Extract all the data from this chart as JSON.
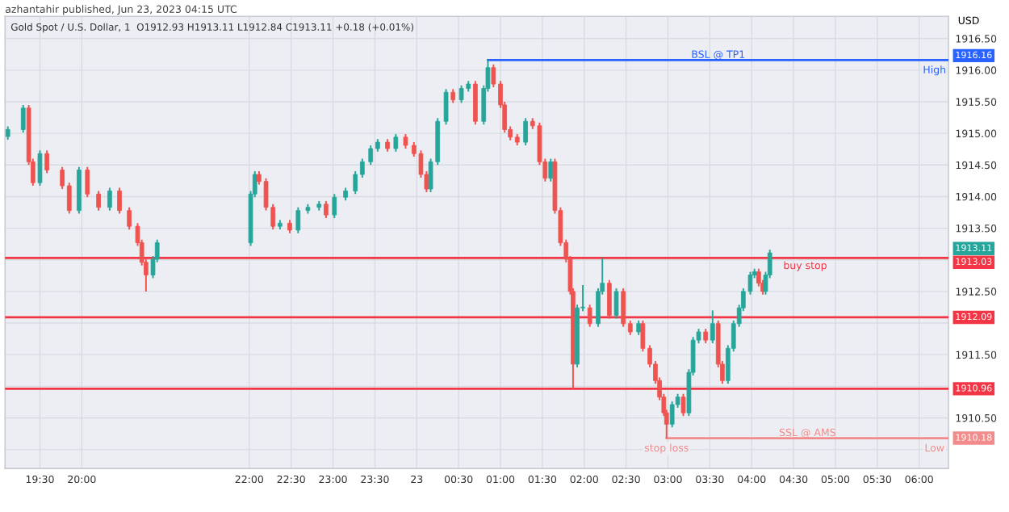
{
  "chart_data": {
    "type": "candlestick",
    "title": "Gold Spot / U.S. Dollar, 1",
    "subtitle": "O1912.93 H1913.11 L1912.84 C1913.11 +0.18 (+0.01%)",
    "ylabel": "USD",
    "grid": true,
    "xlim": [
      "2023-06-22T19:05",
      "2023-06-23T06:21"
    ],
    "xticks": [
      {
        "value": "2023-06-22T19:30",
        "label": "19:30"
      },
      {
        "value": "2023-06-22T20:00",
        "label": "20:00"
      },
      {
        "value": "2023-06-22T22:00",
        "label": "22:00"
      },
      {
        "value": "2023-06-22T22:30",
        "label": "22:30"
      },
      {
        "value": "2023-06-22T23:00",
        "label": "23:00"
      },
      {
        "value": "2023-06-22T23:30",
        "label": "23:30"
      },
      {
        "value": "2023-06-23T00:00",
        "label": "23"
      },
      {
        "value": "2023-06-23T00:30",
        "label": "00:30"
      },
      {
        "value": "2023-06-23T01:00",
        "label": "01:00"
      },
      {
        "value": "2023-06-23T01:30",
        "label": "01:30"
      },
      {
        "value": "2023-06-23T02:00",
        "label": "02:00"
      },
      {
        "value": "2023-06-23T02:30",
        "label": "02:30"
      },
      {
        "value": "2023-06-23T03:00",
        "label": "03:00"
      },
      {
        "value": "2023-06-23T03:30",
        "label": "03:30"
      },
      {
        "value": "2023-06-23T04:00",
        "label": "04:00"
      },
      {
        "value": "2023-06-23T04:30",
        "label": "04:30"
      },
      {
        "value": "2023-06-23T05:00",
        "label": "05:00"
      },
      {
        "value": "2023-06-23T05:30",
        "label": "05:30"
      },
      {
        "value": "2023-06-23T06:00",
        "label": "06:00"
      }
    ],
    "ylim": [
      1909.7,
      1916.85
    ],
    "yticks": [
      {
        "value": 1910.0,
        "label": null
      },
      {
        "value": 1910.5,
        "label": "1910.50"
      },
      {
        "value": 1911.0,
        "label": null
      },
      {
        "value": 1911.5,
        "label": "1911.50"
      },
      {
        "value": 1912.0,
        "label": null
      },
      {
        "value": 1912.5,
        "label": "1912.50"
      },
      {
        "value": 1913.0,
        "label": null
      },
      {
        "value": 1913.5,
        "label": "1913.50"
      },
      {
        "value": 1914.0,
        "label": "1914.00"
      },
      {
        "value": 1914.5,
        "label": "1914.50"
      },
      {
        "value": 1915.0,
        "label": "1915.00"
      },
      {
        "value": 1915.5,
        "label": "1915.50"
      },
      {
        "value": 1916.0,
        "label": "1916.00"
      },
      {
        "value": 1916.5,
        "label": "1916.50"
      }
    ],
    "series": [
      {
        "x": [
          "2023-06-22T19:07",
          "2023-06-22T19:18",
          "2023-06-22T19:22",
          "2023-06-22T19:25",
          "2023-06-22T19:30",
          "2023-06-22T19:35",
          "2023-06-22T19:46",
          "2023-06-22T19:51",
          "2023-06-22T19:58",
          "2023-06-22T20:04",
          "2023-06-22T20:12",
          "2023-06-22T20:20",
          "2023-06-22T20:27",
          "2023-06-22T20:34",
          "2023-06-22T20:40",
          "2023-06-22T20:43",
          "2023-06-22T20:46",
          "2023-06-22T20:51",
          "2023-06-22T20:54",
          "2023-06-22T22:01",
          "2023-06-22T22:04",
          "2023-06-22T22:07",
          "2023-06-22T22:12",
          "2023-06-22T22:17",
          "2023-06-22T22:22",
          "2023-06-22T22:29",
          "2023-06-22T22:35",
          "2023-06-22T22:42",
          "2023-06-22T22:50",
          "2023-06-22T22:55",
          "2023-06-22T23:01",
          "2023-06-22T23:09",
          "2023-06-22T23:16",
          "2023-06-22T23:21",
          "2023-06-22T23:27",
          "2023-06-22T23:32",
          "2023-06-22T23:39",
          "2023-06-22T23:45",
          "2023-06-22T23:52",
          "2023-06-22T23:58",
          "2023-06-23T00:03",
          "2023-06-23T00:07",
          "2023-06-23T00:10",
          "2023-06-23T00:15",
          "2023-06-23T00:21",
          "2023-06-23T00:26",
          "2023-06-23T00:32",
          "2023-06-23T00:37",
          "2023-06-23T00:42",
          "2023-06-23T00:48",
          "2023-06-23T00:51",
          "2023-06-23T00:55",
          "2023-06-23T01:00",
          "2023-06-23T01:03",
          "2023-06-23T01:07",
          "2023-06-23T01:12",
          "2023-06-23T01:18",
          "2023-06-23T01:23",
          "2023-06-23T01:28",
          "2023-06-23T01:32",
          "2023-06-23T01:36",
          "2023-06-23T01:39",
          "2023-06-23T01:43",
          "2023-06-23T01:47",
          "2023-06-23T01:50",
          "2023-06-23T01:52",
          "2023-06-23T01:55",
          "2023-06-23T01:59",
          "2023-06-23T02:04",
          "2023-06-23T02:10",
          "2023-06-23T02:13",
          "2023-06-23T02:18",
          "2023-06-23T02:23",
          "2023-06-23T02:28",
          "2023-06-23T02:33",
          "2023-06-23T02:39",
          "2023-06-23T02:42",
          "2023-06-23T02:47",
          "2023-06-23T02:51",
          "2023-06-23T02:54",
          "2023-06-23T02:57",
          "2023-06-23T02:59",
          "2023-06-23T03:03",
          "2023-06-23T03:07",
          "2023-06-23T03:11",
          "2023-06-23T03:15",
          "2023-06-23T03:18",
          "2023-06-23T03:22",
          "2023-06-23T03:27",
          "2023-06-23T03:32",
          "2023-06-23T03:36",
          "2023-06-23T03:39",
          "2023-06-23T03:43",
          "2023-06-23T03:47",
          "2023-06-23T03:51",
          "2023-06-23T03:54",
          "2023-06-23T03:59",
          "2023-06-23T04:02",
          "2023-06-23T04:05",
          "2023-06-23T04:08",
          "2023-06-23T04:10",
          "2023-06-23T04:13"
        ],
        "ohlc": [
          [
            1914.95,
            1915.11,
            1914.9,
            1915.06
          ],
          [
            1915.06,
            1915.45,
            1915.01,
            1915.4
          ],
          [
            1915.4,
            1915.45,
            1914.5,
            1914.55
          ],
          [
            1914.55,
            1914.6,
            1914.17,
            1914.22
          ],
          [
            1914.22,
            1914.73,
            1914.17,
            1914.68
          ],
          [
            1914.68,
            1914.73,
            1914.37,
            1914.42
          ],
          [
            1914.42,
            1914.47,
            1914.12,
            1914.17
          ],
          [
            1914.17,
            1914.22,
            1913.73,
            1913.78
          ],
          [
            1913.78,
            1914.47,
            1913.73,
            1914.42
          ],
          [
            1914.42,
            1914.47,
            1913.99,
            1914.04
          ],
          [
            1914.04,
            1914.09,
            1913.78,
            1913.83
          ],
          [
            1913.83,
            1914.14,
            1913.78,
            1914.09
          ],
          [
            1914.09,
            1914.14,
            1913.73,
            1913.78
          ],
          [
            1913.78,
            1913.83,
            1913.48,
            1913.53
          ],
          [
            1913.53,
            1913.58,
            1913.22,
            1913.27
          ],
          [
            1913.27,
            1913.32,
            1912.91,
            1912.96
          ],
          [
            1912.96,
            1913.01,
            1912.5,
            1912.76
          ],
          [
            1912.76,
            1913.06,
            1912.71,
            1913.01
          ],
          [
            1913.01,
            1913.32,
            1912.96,
            1913.27
          ],
          [
            1913.27,
            1914.09,
            1913.22,
            1914.04
          ],
          [
            1914.04,
            1914.4,
            1913.99,
            1914.35
          ],
          [
            1914.35,
            1914.4,
            1914.19,
            1914.24
          ],
          [
            1914.24,
            1914.29,
            1913.78,
            1913.83
          ],
          [
            1913.83,
            1913.88,
            1913.48,
            1913.53
          ],
          [
            1913.53,
            1913.63,
            1913.48,
            1913.58
          ],
          [
            1913.58,
            1913.63,
            1913.42,
            1913.47
          ],
          [
            1913.47,
            1913.83,
            1913.42,
            1913.78
          ],
          [
            1913.78,
            1913.88,
            1913.73,
            1913.83
          ],
          [
            1913.83,
            1913.93,
            1913.78,
            1913.88
          ],
          [
            1913.88,
            1913.93,
            1913.66,
            1913.71
          ],
          [
            1913.71,
            1914.04,
            1913.66,
            1913.99
          ],
          [
            1913.99,
            1914.14,
            1913.94,
            1914.09
          ],
          [
            1914.09,
            1914.4,
            1914.04,
            1914.35
          ],
          [
            1914.35,
            1914.6,
            1914.3,
            1914.55
          ],
          [
            1914.55,
            1914.81,
            1914.5,
            1914.76
          ],
          [
            1914.76,
            1914.91,
            1914.71,
            1914.86
          ],
          [
            1914.86,
            1914.91,
            1914.71,
            1914.76
          ],
          [
            1914.76,
            1914.99,
            1914.71,
            1914.94
          ],
          [
            1914.94,
            1914.99,
            1914.76,
            1914.81
          ],
          [
            1914.81,
            1914.86,
            1914.63,
            1914.68
          ],
          [
            1914.68,
            1914.73,
            1914.3,
            1914.35
          ],
          [
            1914.35,
            1914.4,
            1914.07,
            1914.12
          ],
          [
            1914.12,
            1914.6,
            1914.07,
            1914.55
          ],
          [
            1914.55,
            1915.24,
            1914.5,
            1915.19
          ],
          [
            1915.19,
            1915.7,
            1915.14,
            1915.65
          ],
          [
            1915.65,
            1915.7,
            1915.48,
            1915.53
          ],
          [
            1915.53,
            1915.76,
            1915.48,
            1915.71
          ],
          [
            1915.71,
            1915.83,
            1915.66,
            1915.78
          ],
          [
            1915.78,
            1915.83,
            1915.14,
            1915.19
          ],
          [
            1915.19,
            1915.76,
            1915.14,
            1915.71
          ],
          [
            1915.71,
            1916.16,
            1915.66,
            1916.04
          ],
          [
            1916.04,
            1916.09,
            1915.73,
            1915.78
          ],
          [
            1915.78,
            1915.83,
            1915.4,
            1915.45
          ],
          [
            1915.45,
            1915.5,
            1915.01,
            1915.06
          ],
          [
            1915.06,
            1915.11,
            1914.89,
            1914.94
          ],
          [
            1914.94,
            1914.99,
            1914.81,
            1914.86
          ],
          [
            1914.86,
            1915.24,
            1914.81,
            1915.19
          ],
          [
            1915.19,
            1915.24,
            1915.07,
            1915.12
          ],
          [
            1915.12,
            1915.17,
            1914.5,
            1914.55
          ],
          [
            1914.55,
            1914.6,
            1914.24,
            1914.29
          ],
          [
            1914.29,
            1914.6,
            1914.24,
            1914.55
          ],
          [
            1914.55,
            1914.6,
            1913.73,
            1913.78
          ],
          [
            1913.78,
            1913.83,
            1913.22,
            1913.27
          ],
          [
            1913.27,
            1913.32,
            1912.96,
            1913.01
          ],
          [
            1913.01,
            1913.06,
            1912.45,
            1912.5
          ],
          [
            1912.5,
            1912.55,
            1910.96,
            1911.35
          ],
          [
            1911.35,
            1912.29,
            1911.3,
            1912.24
          ],
          [
            1912.24,
            1912.6,
            1912.19,
            1912.24
          ],
          [
            1912.24,
            1912.29,
            1911.94,
            1911.99
          ],
          [
            1911.99,
            1912.55,
            1911.94,
            1912.5
          ],
          [
            1912.5,
            1913.03,
            1912.45,
            1912.63
          ],
          [
            1912.63,
            1912.68,
            1912.07,
            1912.12
          ],
          [
            1912.12,
            1912.55,
            1912.07,
            1912.5
          ],
          [
            1912.5,
            1912.55,
            1911.94,
            1911.99
          ],
          [
            1911.99,
            1912.04,
            1911.81,
            1911.86
          ],
          [
            1911.86,
            1912.04,
            1911.81,
            1911.99
          ],
          [
            1911.99,
            1912.04,
            1911.55,
            1911.6
          ],
          [
            1911.6,
            1911.65,
            1911.3,
            1911.35
          ],
          [
            1911.35,
            1911.4,
            1911.04,
            1911.09
          ],
          [
            1911.09,
            1911.14,
            1910.78,
            1910.83
          ],
          [
            1910.83,
            1910.88,
            1910.53,
            1910.58
          ],
          [
            1910.58,
            1910.63,
            1910.18,
            1910.4
          ],
          [
            1910.4,
            1910.76,
            1910.35,
            1910.71
          ],
          [
            1910.71,
            1910.88,
            1910.66,
            1910.83
          ],
          [
            1910.83,
            1910.88,
            1910.53,
            1910.58
          ],
          [
            1910.58,
            1911.27,
            1910.53,
            1911.22
          ],
          [
            1911.22,
            1911.78,
            1911.17,
            1911.73
          ],
          [
            1911.73,
            1911.91,
            1911.68,
            1911.86
          ],
          [
            1911.86,
            1911.91,
            1911.68,
            1911.73
          ],
          [
            1911.73,
            1912.2,
            1911.68,
            1911.99
          ],
          [
            1911.99,
            1912.04,
            1911.3,
            1911.35
          ],
          [
            1911.35,
            1911.4,
            1911.04,
            1911.09
          ],
          [
            1911.09,
            1911.65,
            1911.04,
            1911.6
          ],
          [
            1911.6,
            1912.04,
            1911.55,
            1911.99
          ],
          [
            1911.99,
            1912.29,
            1911.94,
            1912.24
          ],
          [
            1912.24,
            1912.55,
            1912.19,
            1912.5
          ],
          [
            1912.5,
            1912.81,
            1912.45,
            1912.76
          ],
          [
            1912.76,
            1912.86,
            1912.71,
            1912.81
          ],
          [
            1912.81,
            1912.86,
            1912.58,
            1912.63
          ],
          [
            1912.63,
            1912.68,
            1912.45,
            1912.5
          ],
          [
            1912.5,
            1912.81,
            1912.45,
            1912.76
          ],
          [
            1912.76,
            1913.16,
            1912.71,
            1913.11
          ]
        ],
        "colors": [
          "#26a69a",
          "#26a69a",
          "#ef5350",
          "#ef5350",
          "#26a69a",
          "#ef5350",
          "#ef5350",
          "#ef5350",
          "#26a69a",
          "#ef5350",
          "#ef5350",
          "#26a69a",
          "#ef5350",
          "#ef5350",
          "#ef5350",
          "#ef5350",
          "#ef5350",
          "#26a69a",
          "#26a69a",
          "#26a69a",
          "#26a69a",
          "#ef5350",
          "#ef5350",
          "#ef5350",
          "#26a69a",
          "#ef5350",
          "#26a69a",
          "#26a69a",
          "#26a69a",
          "#ef5350",
          "#26a69a",
          "#26a69a",
          "#26a69a",
          "#26a69a",
          "#26a69a",
          "#26a69a",
          "#ef5350",
          "#26a69a",
          "#ef5350",
          "#ef5350",
          "#ef5350",
          "#ef5350",
          "#26a69a",
          "#26a69a",
          "#26a69a",
          "#ef5350",
          "#26a69a",
          "#26a69a",
          "#ef5350",
          "#26a69a",
          "#26a69a",
          "#ef5350",
          "#ef5350",
          "#ef5350",
          "#ef5350",
          "#ef5350",
          "#26a69a",
          "#ef5350",
          "#ef5350",
          "#ef5350",
          "#26a69a",
          "#ef5350",
          "#ef5350",
          "#ef5350",
          "#ef5350",
          "#ef5350",
          "#26a69a",
          "#26a69a",
          "#ef5350",
          "#26a69a",
          "#26a69a",
          "#ef5350",
          "#26a69a",
          "#ef5350",
          "#ef5350",
          "#26a69a",
          "#ef5350",
          "#ef5350",
          "#ef5350",
          "#ef5350",
          "#ef5350",
          "#ef5350",
          "#26a69a",
          "#26a69a",
          "#ef5350",
          "#26a69a",
          "#26a69a",
          "#26a69a",
          "#ef5350",
          "#26a69a",
          "#ef5350",
          "#ef5350",
          "#26a69a",
          "#26a69a",
          "#26a69a",
          "#26a69a",
          "#26a69a",
          "#26a69a",
          "#ef5350",
          "#ef5350",
          "#26a69a",
          "#26a69a"
        ]
      },
      {
        "type": "line",
        "name": "BSL @ TP1",
        "color": "#2962ff",
        "x": [
          "2023-06-23T00:51",
          "2023-06-23T06:21"
        ],
        "values": [
          1916.16,
          1916.16
        ]
      },
      {
        "type": "line",
        "name": "SSL @ AMS",
        "color": "#f28b8b",
        "x": [
          "2023-06-23T02:59",
          "2023-06-23T06:21"
        ],
        "values": [
          1910.18,
          1910.18
        ]
      }
    ],
    "ref_lines": [
      {
        "axis": "y",
        "value": 1913.03,
        "label": "buy stop",
        "color": "#f23645"
      },
      {
        "axis": "y",
        "value": 1912.09,
        "label": null,
        "color": "#f23645"
      },
      {
        "axis": "y",
        "value": 1910.96,
        "label": null,
        "color": "#f23645"
      }
    ],
    "annotations": [
      "azhantahir published, Jun 23, 2023 04:15 UTC",
      {
        "text": "High",
        "x": "2023-06-23T06:11",
        "y": 1916.16
      },
      {
        "text": "Low",
        "x": "2023-06-23T06:11",
        "y": 1910.18
      },
      {
        "text": "stop loss",
        "x": "2023-06-23T02:59",
        "y": 1910.18
      },
      {
        "text": "1916.16",
        "x": "2023-06-23T06:21",
        "y": 1916.16
      },
      {
        "text": "1913.11",
        "x": "2023-06-23T06:21",
        "y": 1913.11
      },
      {
        "text": "1913.03",
        "x": "2023-06-23T06:21",
        "y": 1913.03
      },
      {
        "text": "1912.09",
        "x": "2023-06-23T06:21",
        "y": 1912.09
      },
      {
        "text": "1910.96",
        "x": "2023-06-23T06:21",
        "y": 1910.96
      },
      {
        "text": "1910.18",
        "x": "2023-06-23T06:21",
        "y": 1910.18
      }
    ]
  }
}
